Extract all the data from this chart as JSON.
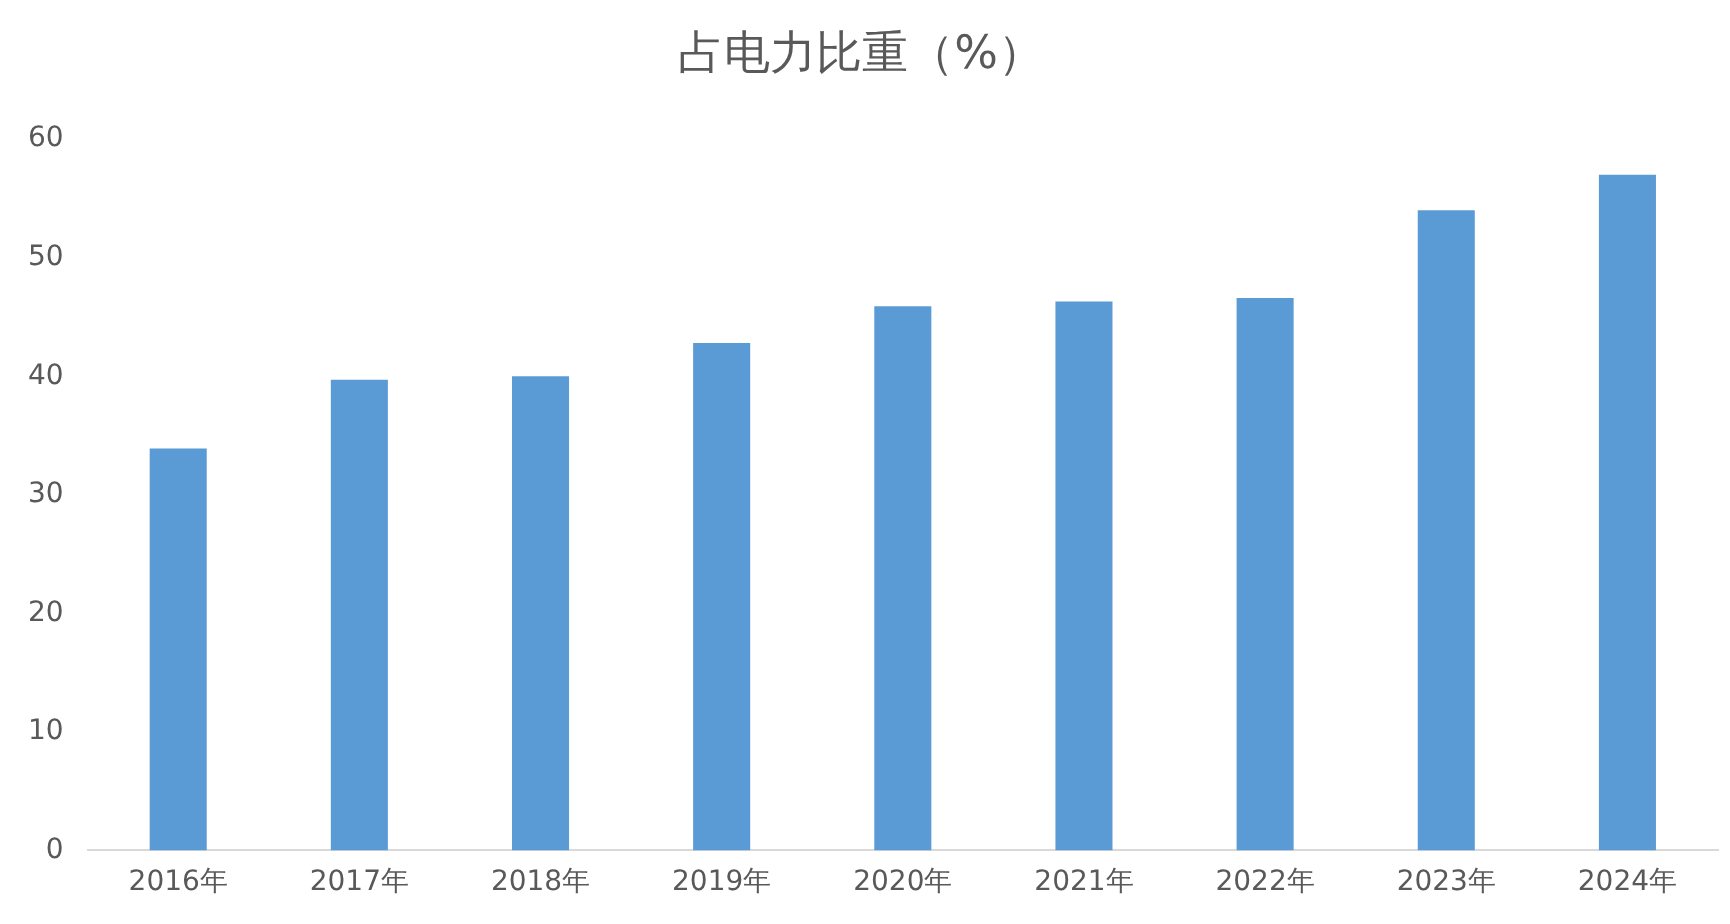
{
  "chart_data": {
    "type": "bar",
    "title": "占电力比重（%）",
    "categories": [
      "2016年",
      "2017年",
      "2018年",
      "2019年",
      "2020年",
      "2021年",
      "2022年",
      "2023年",
      "2024年"
    ],
    "values": [
      33.9,
      39.7,
      40.0,
      42.8,
      45.9,
      46.3,
      46.6,
      54.0,
      57.0
    ],
    "color": "#5b9bd5",
    "ylim": [
      0,
      60
    ],
    "yticks": [
      0,
      10,
      20,
      30,
      40,
      50,
      60
    ],
    "grid": false
  }
}
